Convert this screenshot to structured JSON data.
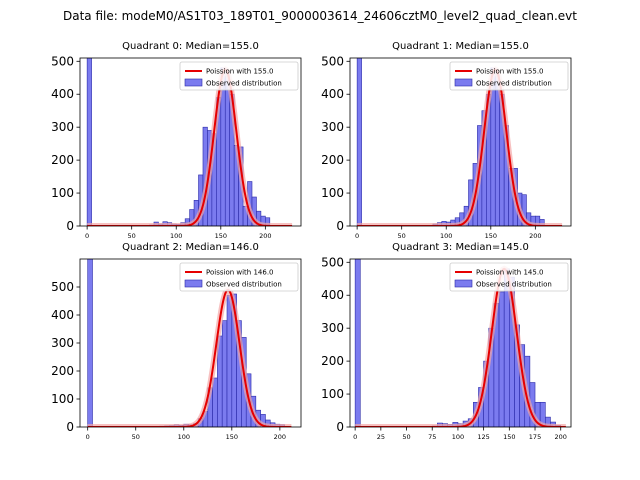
{
  "figure_title": "Data file: modeM0/AS1T03_189T01_9000003614_24606cztM0_level2_quad_clean.evt",
  "colors": {
    "bar_fill": "#7b7bef",
    "bar_edge": "#2a2aa8",
    "fit_line": "#e60000",
    "fit_shadow": "#f3a6a6"
  },
  "chart_data": [
    {
      "type": "bar+line",
      "title": "Quadrant 0: Median=155.0",
      "xlim": [
        -8,
        240
      ],
      "ylim": [
        0,
        510
      ],
      "xticks": [
        0,
        50,
        100,
        150,
        200
      ],
      "yticks": [
        0,
        100,
        200,
        300,
        400,
        500
      ],
      "bin_width": 5,
      "bars": [
        {
          "x": 0,
          "y": 510
        },
        {
          "x": 70,
          "y": 3
        },
        {
          "x": 75,
          "y": 12
        },
        {
          "x": 80,
          "y": 6
        },
        {
          "x": 85,
          "y": 13
        },
        {
          "x": 90,
          "y": 10
        },
        {
          "x": 95,
          "y": 6
        },
        {
          "x": 100,
          "y": 5
        },
        {
          "x": 105,
          "y": 10
        },
        {
          "x": 110,
          "y": 22
        },
        {
          "x": 115,
          "y": 50
        },
        {
          "x": 120,
          "y": 78
        },
        {
          "x": 125,
          "y": 155
        },
        {
          "x": 130,
          "y": 300
        },
        {
          "x": 135,
          "y": 290
        },
        {
          "x": 140,
          "y": 280
        },
        {
          "x": 145,
          "y": 390
        },
        {
          "x": 150,
          "y": 480
        },
        {
          "x": 155,
          "y": 470
        },
        {
          "x": 160,
          "y": 400
        },
        {
          "x": 165,
          "y": 245
        },
        {
          "x": 170,
          "y": 240
        },
        {
          "x": 175,
          "y": 60
        },
        {
          "x": 180,
          "y": 135
        },
        {
          "x": 185,
          "y": 88
        },
        {
          "x": 190,
          "y": 45
        },
        {
          "x": 195,
          "y": 30
        },
        {
          "x": 200,
          "y": 25
        }
      ],
      "fit": {
        "mean": 155.0,
        "peak": 475,
        "x_range": [
          0,
          230
        ]
      },
      "legend": [
        "Poission with 155.0",
        "Observed distribution"
      ]
    },
    {
      "type": "bar+line",
      "title": "Quadrant 1: Median=155.0",
      "xlim": [
        -8,
        240
      ],
      "ylim": [
        0,
        510
      ],
      "xticks": [
        0,
        50,
        100,
        150,
        200
      ],
      "yticks": [
        0,
        100,
        200,
        300,
        400,
        500
      ],
      "bin_width": 5,
      "bars": [
        {
          "x": 0,
          "y": 510
        },
        {
          "x": 85,
          "y": 6
        },
        {
          "x": 90,
          "y": 10
        },
        {
          "x": 95,
          "y": 14
        },
        {
          "x": 100,
          "y": 12
        },
        {
          "x": 105,
          "y": 18
        },
        {
          "x": 110,
          "y": 25
        },
        {
          "x": 115,
          "y": 40
        },
        {
          "x": 120,
          "y": 60
        },
        {
          "x": 125,
          "y": 140
        },
        {
          "x": 130,
          "y": 190
        },
        {
          "x": 135,
          "y": 305
        },
        {
          "x": 140,
          "y": 350
        },
        {
          "x": 145,
          "y": 400
        },
        {
          "x": 150,
          "y": 480
        },
        {
          "x": 155,
          "y": 460
        },
        {
          "x": 160,
          "y": 400
        },
        {
          "x": 165,
          "y": 305
        },
        {
          "x": 170,
          "y": 175
        },
        {
          "x": 175,
          "y": 175
        },
        {
          "x": 180,
          "y": 100
        },
        {
          "x": 185,
          "y": 95
        },
        {
          "x": 190,
          "y": 40
        },
        {
          "x": 195,
          "y": 30
        },
        {
          "x": 200,
          "y": 30
        },
        {
          "x": 205,
          "y": 20
        }
      ],
      "fit": {
        "mean": 155.0,
        "peak": 475,
        "x_range": [
          0,
          230
        ]
      },
      "legend": [
        "Poission with 155.0",
        "Observed distribution"
      ]
    },
    {
      "type": "bar+line",
      "title": "Quadrant 2: Median=146.0",
      "xlim": [
        -8,
        222
      ],
      "ylim": [
        0,
        600
      ],
      "xticks": [
        0,
        50,
        100,
        150,
        200
      ],
      "yticks": [
        0,
        100,
        200,
        300,
        400,
        500
      ],
      "bin_width": 5,
      "bars": [
        {
          "x": 0,
          "y": 600
        },
        {
          "x": 75,
          "y": 3
        },
        {
          "x": 80,
          "y": 4
        },
        {
          "x": 85,
          "y": 5
        },
        {
          "x": 90,
          "y": 8
        },
        {
          "x": 95,
          "y": 6
        },
        {
          "x": 100,
          "y": 10
        },
        {
          "x": 105,
          "y": 8
        },
        {
          "x": 110,
          "y": 12
        },
        {
          "x": 115,
          "y": 30
        },
        {
          "x": 120,
          "y": 55
        },
        {
          "x": 125,
          "y": 140
        },
        {
          "x": 130,
          "y": 175
        },
        {
          "x": 135,
          "y": 325
        },
        {
          "x": 140,
          "y": 380
        },
        {
          "x": 145,
          "y": 470
        },
        {
          "x": 150,
          "y": 475
        },
        {
          "x": 155,
          "y": 380
        },
        {
          "x": 160,
          "y": 320
        },
        {
          "x": 165,
          "y": 190
        },
        {
          "x": 170,
          "y": 110
        },
        {
          "x": 175,
          "y": 60
        },
        {
          "x": 180,
          "y": 45
        },
        {
          "x": 185,
          "y": 25
        },
        {
          "x": 190,
          "y": 15
        },
        {
          "x": 195,
          "y": 10
        },
        {
          "x": 200,
          "y": 8
        }
      ],
      "fit": {
        "mean": 146.0,
        "peak": 490,
        "x_range": [
          0,
          212
        ]
      },
      "legend": [
        "Poission with 146.0",
        "Observed distribution"
      ]
    },
    {
      "type": "bar+line",
      "title": "Quadrant 3: Median=145.0",
      "xlim": [
        -5,
        210
      ],
      "ylim": [
        0,
        510
      ],
      "xticks": [
        0,
        25,
        50,
        75,
        100,
        125,
        150,
        175,
        200
      ],
      "yticks": [
        0,
        100,
        200,
        300,
        400,
        500
      ],
      "bin_width": 5,
      "bars": [
        {
          "x": 0,
          "y": 510
        },
        {
          "x": 75,
          "y": 3
        },
        {
          "x": 80,
          "y": 12
        },
        {
          "x": 85,
          "y": 10
        },
        {
          "x": 90,
          "y": 8
        },
        {
          "x": 95,
          "y": 14
        },
        {
          "x": 100,
          "y": 10
        },
        {
          "x": 105,
          "y": 18
        },
        {
          "x": 110,
          "y": 25
        },
        {
          "x": 115,
          "y": 75
        },
        {
          "x": 120,
          "y": 120
        },
        {
          "x": 125,
          "y": 200
        },
        {
          "x": 130,
          "y": 300
        },
        {
          "x": 135,
          "y": 375
        },
        {
          "x": 140,
          "y": 410
        },
        {
          "x": 145,
          "y": 480
        },
        {
          "x": 150,
          "y": 455
        },
        {
          "x": 155,
          "y": 310
        },
        {
          "x": 160,
          "y": 250
        },
        {
          "x": 165,
          "y": 215
        },
        {
          "x": 170,
          "y": 135
        },
        {
          "x": 175,
          "y": 75
        },
        {
          "x": 180,
          "y": 75
        },
        {
          "x": 185,
          "y": 30
        },
        {
          "x": 190,
          "y": 15
        },
        {
          "x": 195,
          "y": 5
        }
      ],
      "fit": {
        "mean": 145.0,
        "peak": 480,
        "x_range": [
          0,
          205
        ]
      },
      "legend": [
        "Poission with 145.0",
        "Observed distribution"
      ]
    }
  ]
}
